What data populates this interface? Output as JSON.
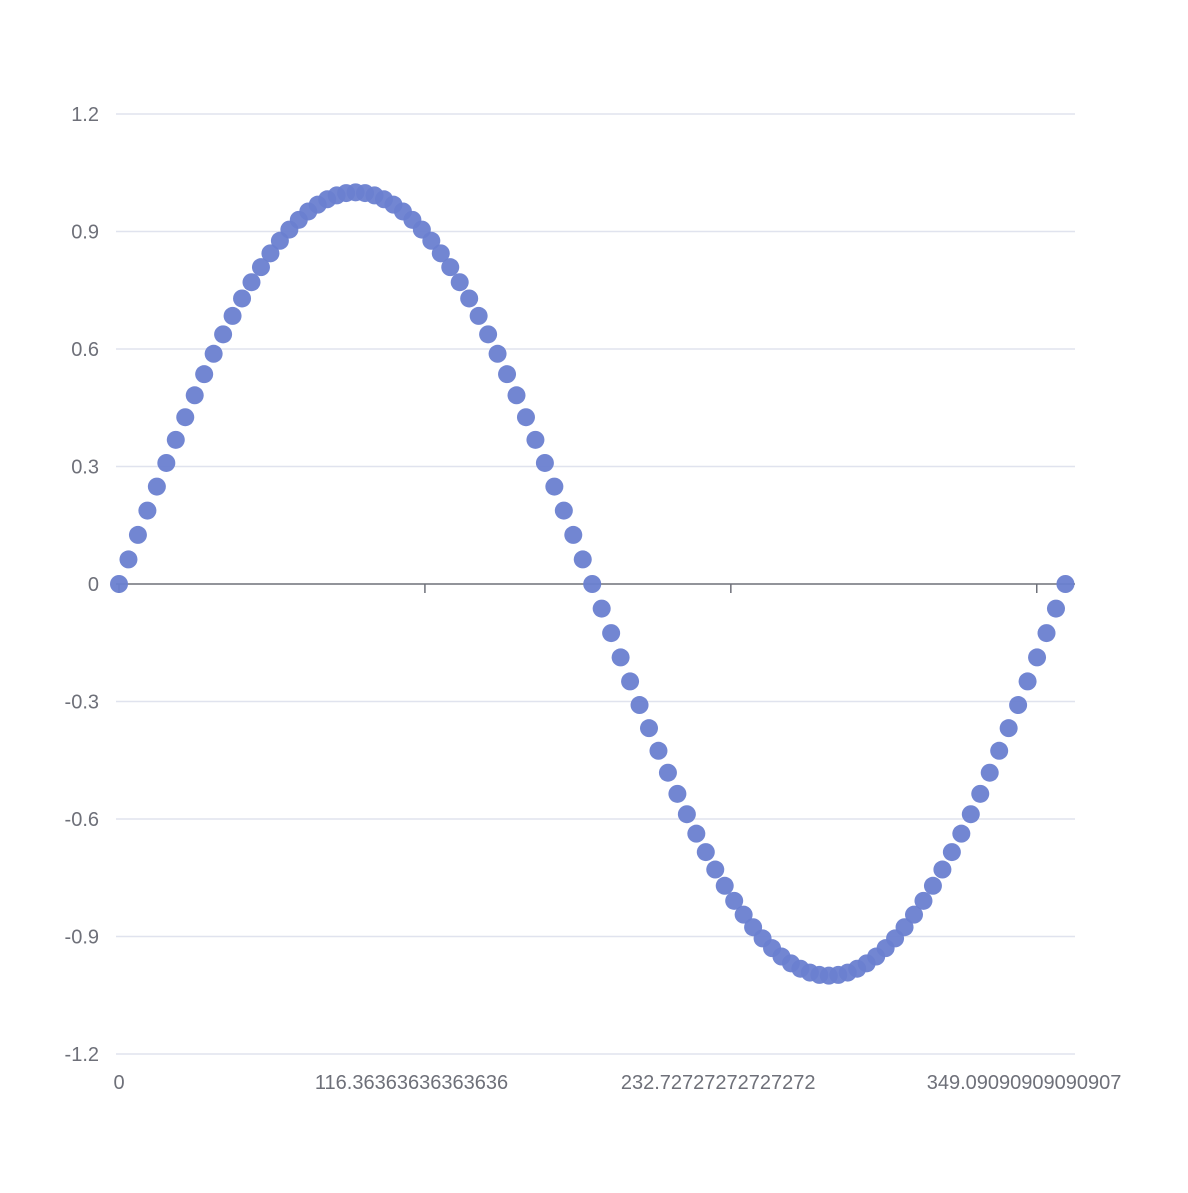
{
  "chart_data": {
    "type": "scatter",
    "title": "",
    "xlabel": "",
    "ylabel": "",
    "x_axis": {
      "min": 0,
      "max": 363.6363636363636,
      "tick_values": [
        0,
        116.36363636363636,
        232.72727272727272,
        349.09090909090907
      ],
      "tick_labels": [
        "0",
        "116.36363636363636",
        "232.72727272727272",
        "349.09090909090907"
      ]
    },
    "y_axis": {
      "min": -1.2,
      "max": 1.2,
      "tick_values": [
        1.2,
        0.9,
        0.6,
        0.3,
        0,
        -0.3,
        -0.6,
        -0.9,
        -1.2
      ],
      "tick_labels": [
        "1.2",
        "0.9",
        "0.6",
        "0.3",
        "0",
        "-0.3",
        "-0.6",
        "-0.9",
        "-1.2"
      ]
    },
    "grid": true,
    "legend": "none",
    "colors": {
      "points": "#6a7fd0",
      "grid": "#e0e3ee",
      "axis": "#6e7079",
      "label": "#6e7079"
    },
    "series": [
      {
        "x": [
          0,
          3.6,
          7.2,
          10.8,
          14.4,
          18,
          21.6,
          25.2,
          28.8,
          32.4,
          36,
          39.6,
          43.2,
          46.8,
          50.4,
          54,
          57.6,
          61.2,
          64.8,
          68.4,
          72,
          75.6,
          79.2,
          82.8,
          86.4,
          90,
          93.6,
          97.2,
          100.8,
          104.4,
          108,
          111.6,
          115.2,
          118.8,
          122.4,
          126,
          129.6,
          133.2,
          136.8,
          140.4,
          144,
          147.6,
          151.2,
          154.8,
          158.4,
          162,
          165.6,
          169.2,
          172.8,
          176.4,
          180,
          183.6,
          187.2,
          190.8,
          194.4,
          198,
          201.6,
          205.2,
          208.8,
          212.4,
          216,
          219.6,
          223.2,
          226.8,
          230.4,
          234,
          237.6,
          241.2,
          244.8,
          248.4,
          252,
          255.6,
          259.2,
          262.8,
          266.4,
          270,
          273.6,
          277.2,
          280.8,
          284.4,
          288,
          291.6,
          295.2,
          298.8,
          302.4,
          306,
          309.6,
          313.2,
          316.8,
          320.4,
          324,
          327.6,
          331.2,
          334.8,
          338.4,
          342,
          345.6,
          349.2,
          352.8,
          356.4,
          360
        ],
        "y": [
          0,
          0.0628,
          0.1253,
          0.1874,
          0.2487,
          0.309,
          0.3681,
          0.4258,
          0.4818,
          0.5358,
          0.5878,
          0.6374,
          0.6845,
          0.729,
          0.7705,
          0.809,
          0.8443,
          0.8763,
          0.9048,
          0.9298,
          0.9511,
          0.9686,
          0.9823,
          0.9921,
          0.998,
          1,
          0.998,
          0.9921,
          0.9823,
          0.9686,
          0.9511,
          0.9298,
          0.9048,
          0.8763,
          0.8443,
          0.809,
          0.7705,
          0.729,
          0.6845,
          0.6374,
          0.5878,
          0.5358,
          0.4818,
          0.4258,
          0.3681,
          0.309,
          0.2487,
          0.1874,
          0.1253,
          0.0628,
          0,
          -0.0628,
          -0.1253,
          -0.1874,
          -0.2487,
          -0.309,
          -0.3681,
          -0.4258,
          -0.4818,
          -0.5358,
          -0.5878,
          -0.6374,
          -0.6845,
          -0.729,
          -0.7705,
          -0.809,
          -0.8443,
          -0.8763,
          -0.9048,
          -0.9298,
          -0.9511,
          -0.9686,
          -0.9823,
          -0.9921,
          -0.998,
          -1,
          -0.998,
          -0.9921,
          -0.9823,
          -0.9686,
          -0.9511,
          -0.9298,
          -0.9048,
          -0.8763,
          -0.8443,
          -0.809,
          -0.7705,
          -0.729,
          -0.6845,
          -0.6374,
          -0.5878,
          -0.5358,
          -0.4818,
          -0.4258,
          -0.3681,
          -0.309,
          -0.2487,
          -0.1874,
          -0.1253,
          -0.0628,
          0
        ]
      }
    ]
  }
}
